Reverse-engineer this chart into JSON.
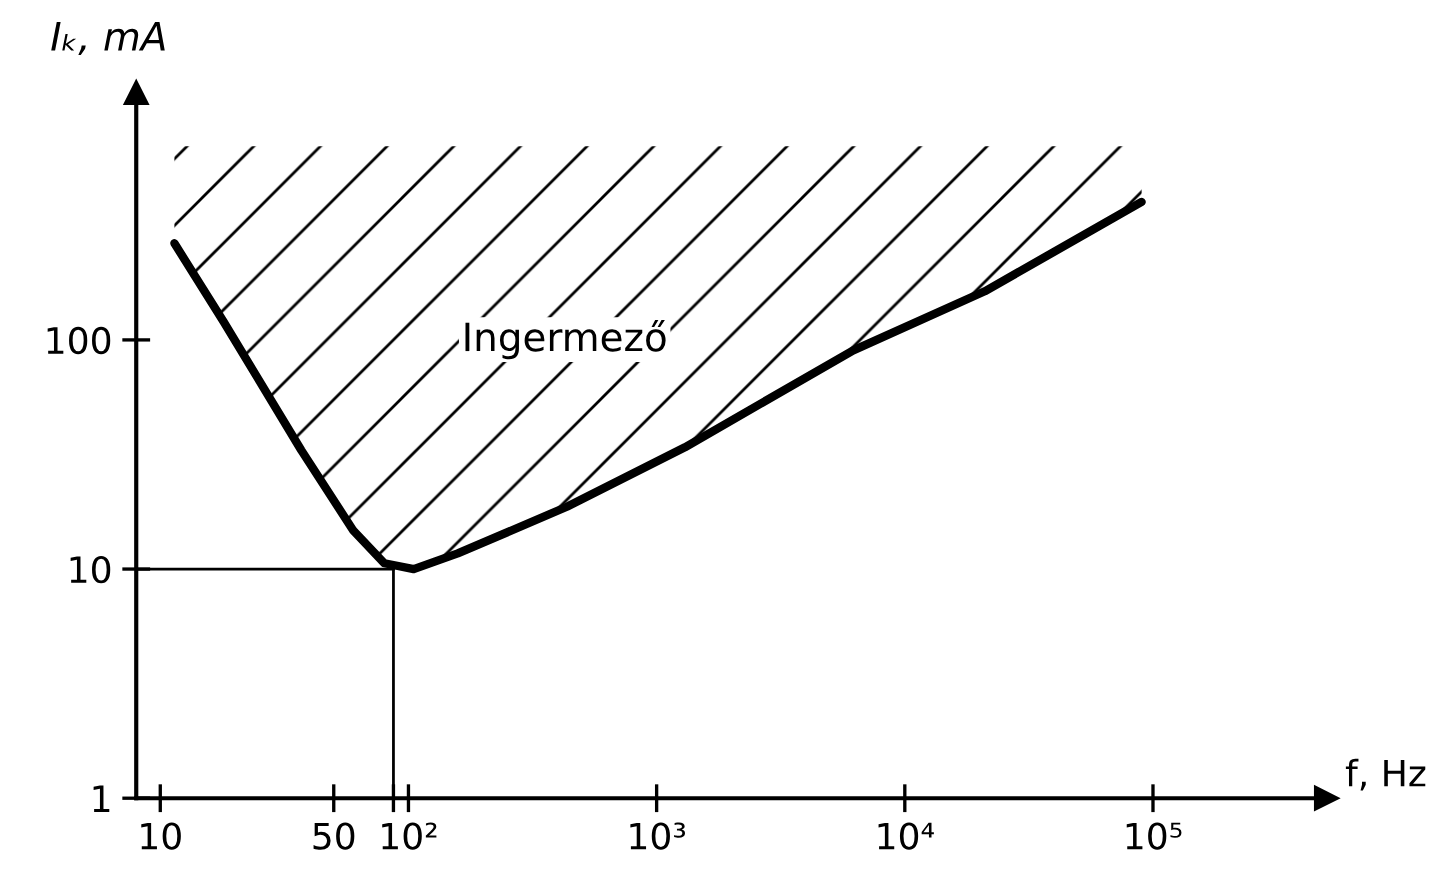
{
  "chart_data": {
    "type": "line",
    "xlabel": "f, Hz",
    "ylabel": "Iₖ, mA",
    "log": "xy",
    "grid": false,
    "marker": "none",
    "line_style": "solid",
    "x": [
      11.4,
      18,
      37,
      60,
      80,
      105,
      158,
      435,
      1300,
      6200,
      21000,
      90000
    ],
    "series": [
      {
        "color": "#000000",
        "values": [
          264,
          120,
          33,
          14.7,
          10.6,
          10,
          11.7,
          18.7,
          34,
          90,
          163,
          400
        ],
        "lower": [
          264,
          120,
          33,
          14.7,
          10.6,
          10,
          11.7,
          18.7,
          34,
          90,
          163,
          400
        ],
        "upper": [
          700,
          700,
          700,
          700,
          700,
          700,
          700,
          700,
          700,
          700,
          700,
          700
        ]
      }
    ],
    "xlim": [
      8,
      500000
    ],
    "ylim": [
      1,
      1200
    ],
    "xticks": [
      10,
      50,
      {
        "value": 87,
        "label": null
      },
      {
        "value": 100,
        "label": "10²"
      },
      {
        "value": 1000,
        "label": "10³"
      },
      {
        "value": 10000,
        "label": "10⁴"
      },
      {
        "value": 100000,
        "label": "10⁵"
      }
    ],
    "yticks": [
      1,
      10,
      100
    ],
    "ref_lines": [
      {
        "axis": "x",
        "value": 87
      },
      {
        "axis": "y",
        "value": 10
      }
    ],
    "annotations": [
      "Ingermező"
    ]
  }
}
